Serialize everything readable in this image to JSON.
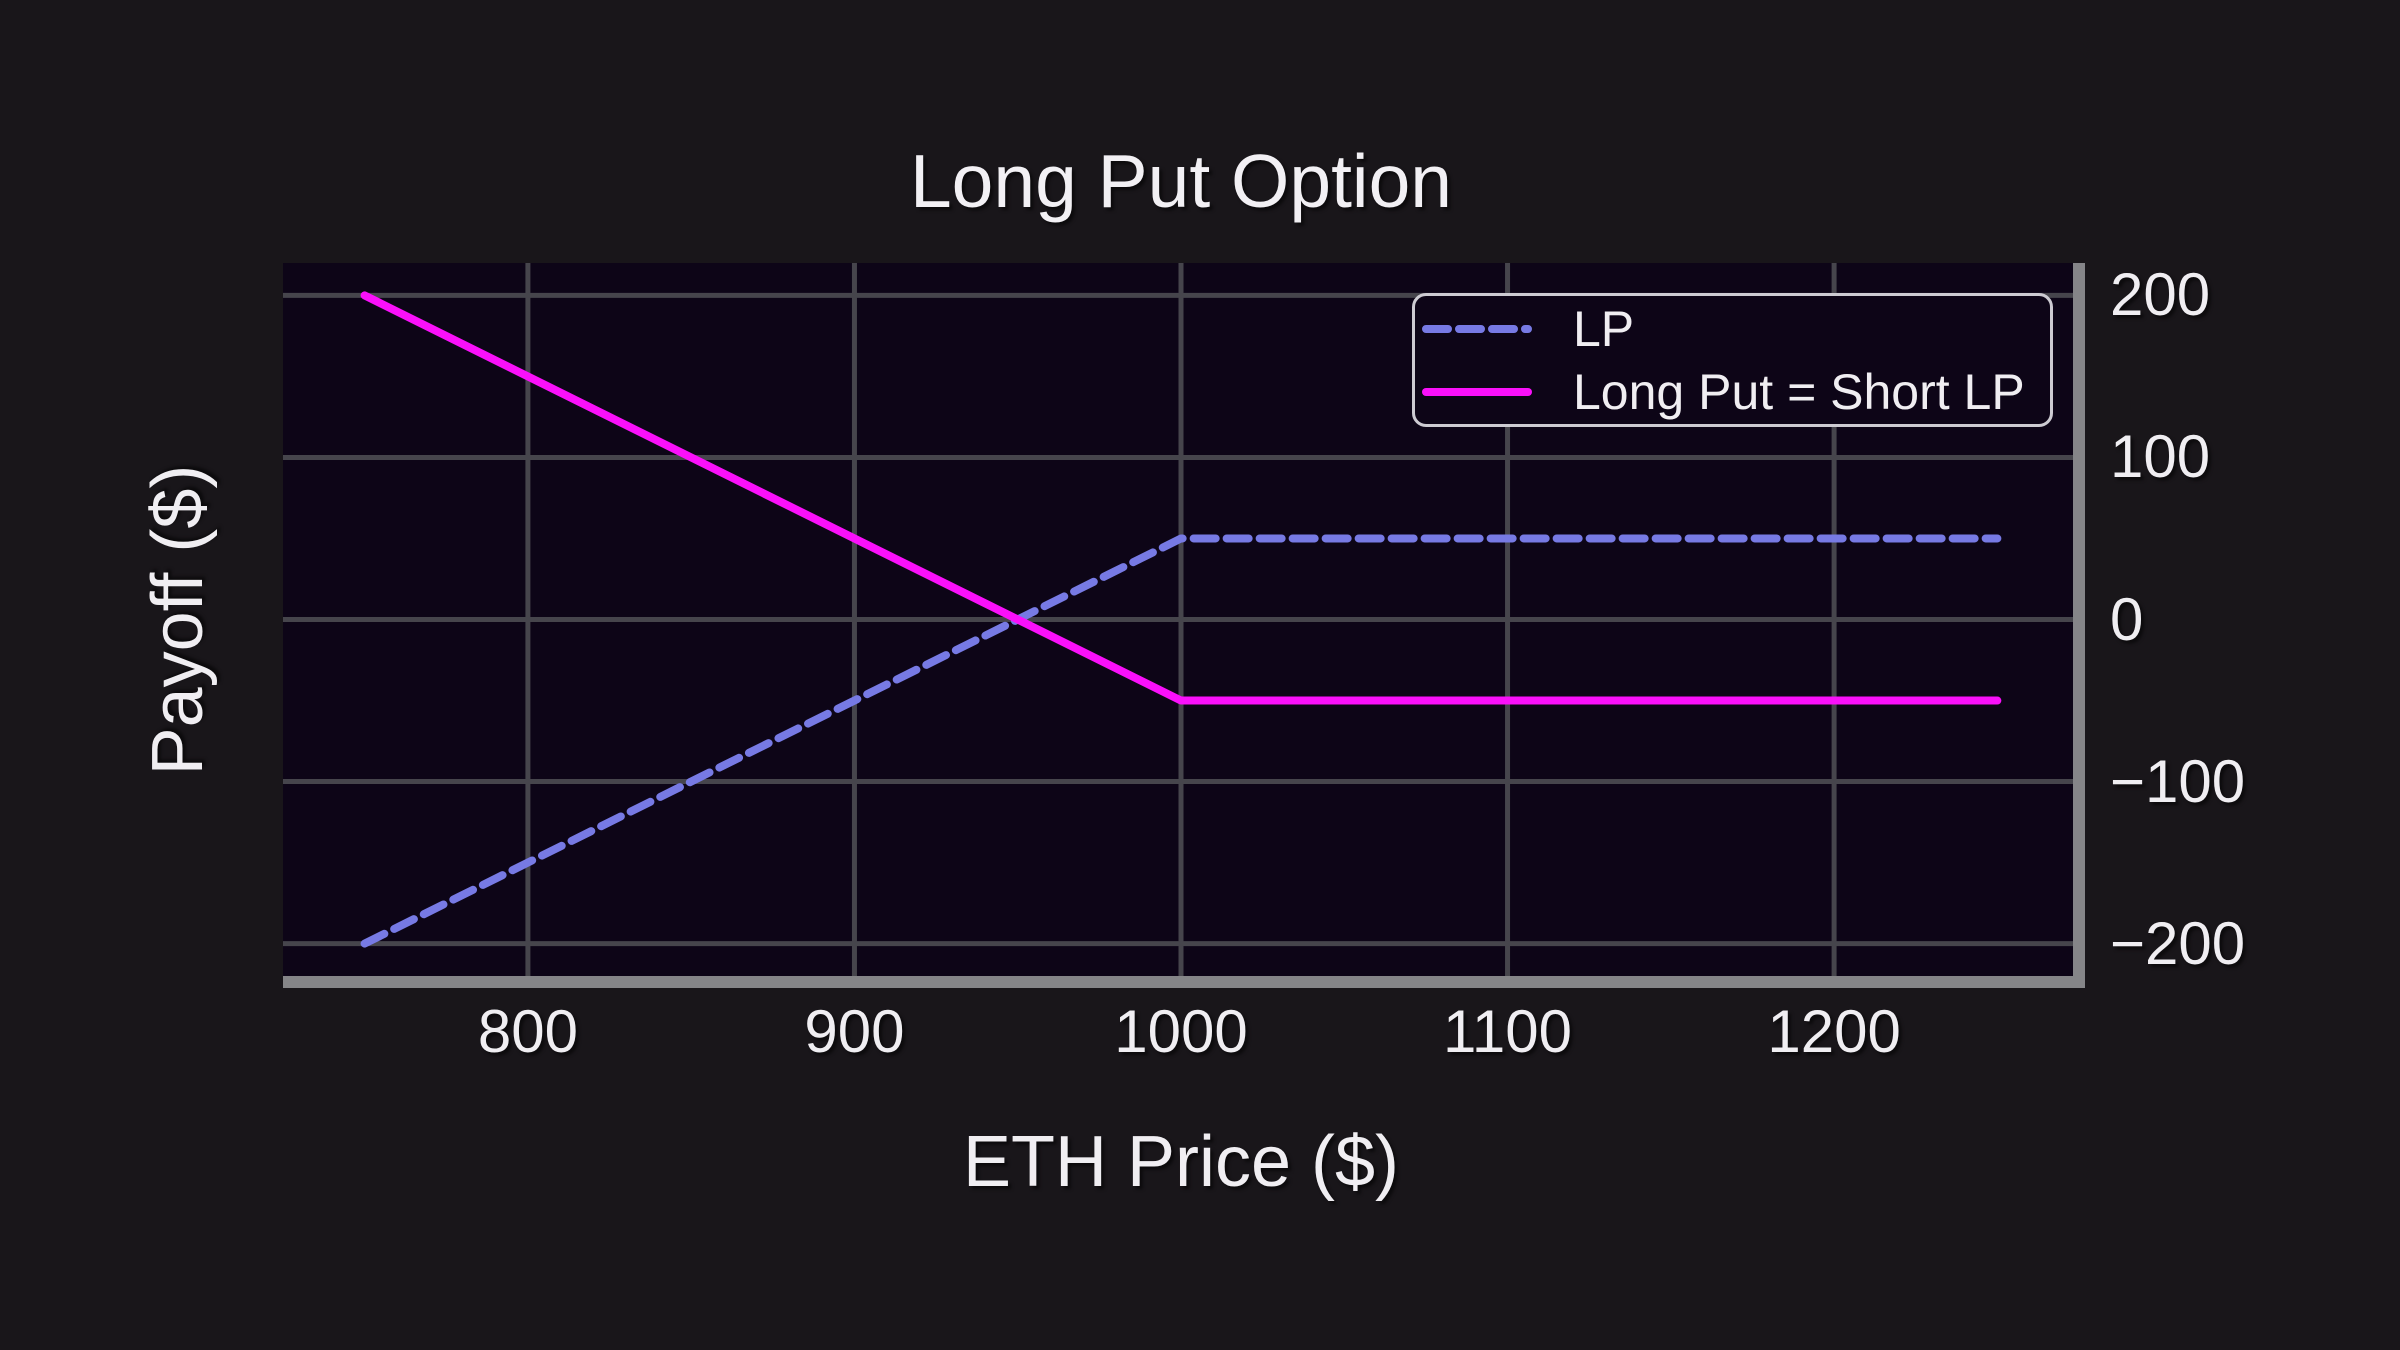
{
  "chart_data": {
    "type": "line",
    "title": "Long Put Option",
    "xlabel": "ETH Price ($)",
    "ylabel": "Payoff ($)",
    "xlim": [
      725,
      1275
    ],
    "ylim": [
      -220,
      220
    ],
    "grid": true,
    "x_ticks": [
      800,
      900,
      1000,
      1100,
      1200
    ],
    "x_tick_labels": [
      "800",
      "900",
      "1000",
      "1100",
      "1200"
    ],
    "y_ticks": [
      200,
      100,
      0,
      -100,
      -200
    ],
    "y_tick_labels": [
      "200",
      "100",
      "0",
      "−100",
      "−200"
    ],
    "strike": 1000,
    "premium": 50,
    "series": [
      {
        "name": "LP",
        "style": "dashed",
        "color": "#777ae4",
        "x": [
          750,
          1000,
          1250
        ],
        "y": [
          -200,
          50,
          50
        ]
      },
      {
        "name": "Long Put = Short LP",
        "style": "solid",
        "color": "#fa10fa",
        "x": [
          750,
          1000,
          1250
        ],
        "y": [
          200,
          -50,
          -50
        ]
      }
    ],
    "legend": {
      "position": "upper right",
      "entries": [
        {
          "label": "LP",
          "style": "dashed",
          "color": "#777ae4"
        },
        {
          "label": "Long Put = Short LP",
          "style": "solid",
          "color": "#fa10fa"
        }
      ]
    }
  },
  "colors": {
    "figure_background": "#19161a",
    "plot_background": "#0d0517",
    "gridline": "#46454c",
    "spine": "#858588",
    "text": "#f0eef2",
    "legend_border": "#cdcbd2"
  }
}
